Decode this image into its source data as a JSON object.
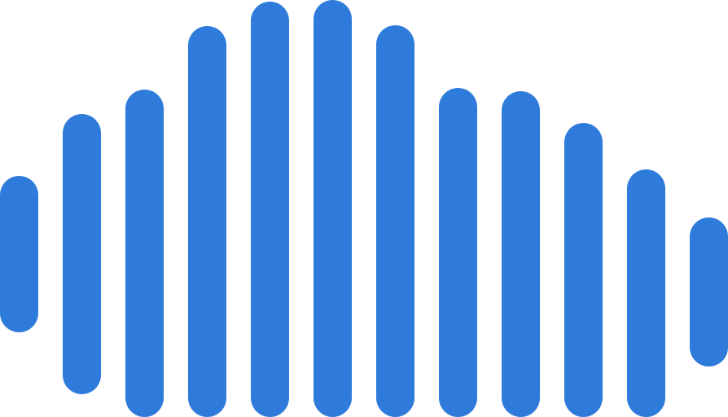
{
  "logo": {
    "icon": "audio-waveform-icon",
    "color": "#2F7BDB"
  }
}
